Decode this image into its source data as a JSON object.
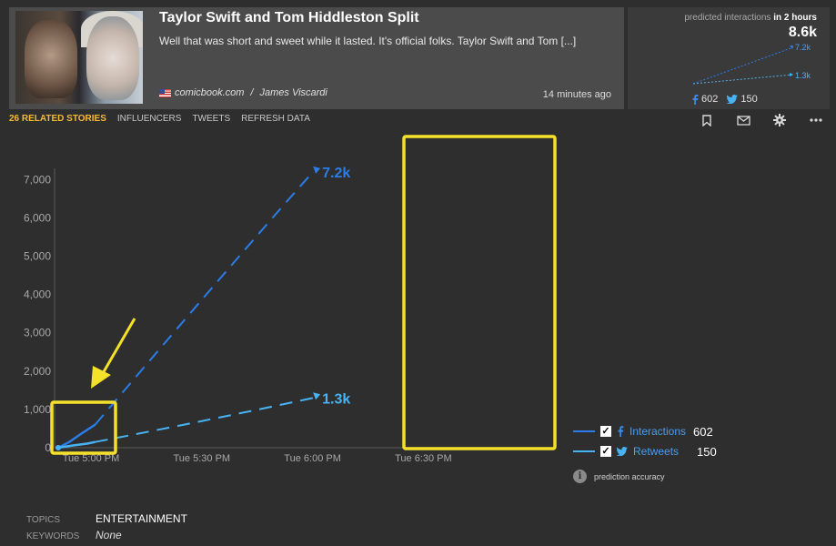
{
  "story": {
    "title": "Taylor Swift and Tom Hiddleston Split",
    "summary": "Well that was short and sweet while it lasted. It's official folks. Taylor Swift and Tom [...]",
    "source": "comicbook.com",
    "separator": "/",
    "author": "James Viscardi",
    "time_ago": "14 minutes ago"
  },
  "prediction": {
    "label_prefix": "predicted interactions",
    "label_suffix": "in 2 hours",
    "total": "8.6k",
    "mini_interactions": "7.2k",
    "mini_retweets": "1.3k",
    "facebook_count": "602",
    "twitter_count": "150"
  },
  "tabs": [
    "26 RELATED STORIES",
    "INFLUENCERS",
    "TWEETS",
    "REFRESH DATA"
  ],
  "toolbar": {
    "icons": [
      "bookmark-icon",
      "mail-icon",
      "gear-icon",
      "more-icon"
    ]
  },
  "colors": {
    "interactions": "#2b7de9",
    "retweets": "#47b3f5",
    "highlight": "#f5e12a",
    "active_tab": "#f5b93a"
  },
  "chart_data": {
    "type": "line",
    "x_ticks": [
      "Tue 5:00 PM",
      "Tue 5:30 PM",
      "Tue 6:00 PM",
      "Tue 6:30 PM"
    ],
    "y_ticks": [
      "0",
      "1,000",
      "2,000",
      "3,000",
      "4,000",
      "5,000",
      "6,000",
      "7,000"
    ],
    "ylim": [
      0,
      7400
    ],
    "xlim_minutes": [
      -5,
      60
    ],
    "series": [
      {
        "name": "Interactions",
        "color": "#2b7de9",
        "actual": [
          [
            0,
            0
          ],
          [
            3,
            150
          ],
          [
            6,
            350
          ],
          [
            9,
            540
          ],
          [
            10,
            602
          ]
        ],
        "predicted": [
          [
            10,
            602
          ],
          [
            55,
            5700
          ],
          [
            69,
            7200
          ]
        ],
        "end_label": "7.2k"
      },
      {
        "name": "Retweets",
        "color": "#47b3f5",
        "actual": [
          [
            0,
            0
          ],
          [
            4,
            60
          ],
          [
            8,
            110
          ],
          [
            10,
            150
          ]
        ],
        "predicted": [
          [
            10,
            150
          ],
          [
            40,
            700
          ],
          [
            69,
            1300
          ]
        ],
        "end_label": "1.3k"
      }
    ]
  },
  "legend": [
    {
      "name": "Interactions",
      "value": "602",
      "icon": "facebook-icon",
      "color": "#2b7de9"
    },
    {
      "name": "Retweets",
      "value": "150",
      "icon": "twitter-icon",
      "color": "#47b3f5"
    }
  ],
  "accuracy_label": "prediction accuracy",
  "meta": {
    "topics_key": "TOPICS",
    "topics_value": "ENTERTAINMENT",
    "keywords_key": "KEYWORDS",
    "keywords_value": "None"
  }
}
